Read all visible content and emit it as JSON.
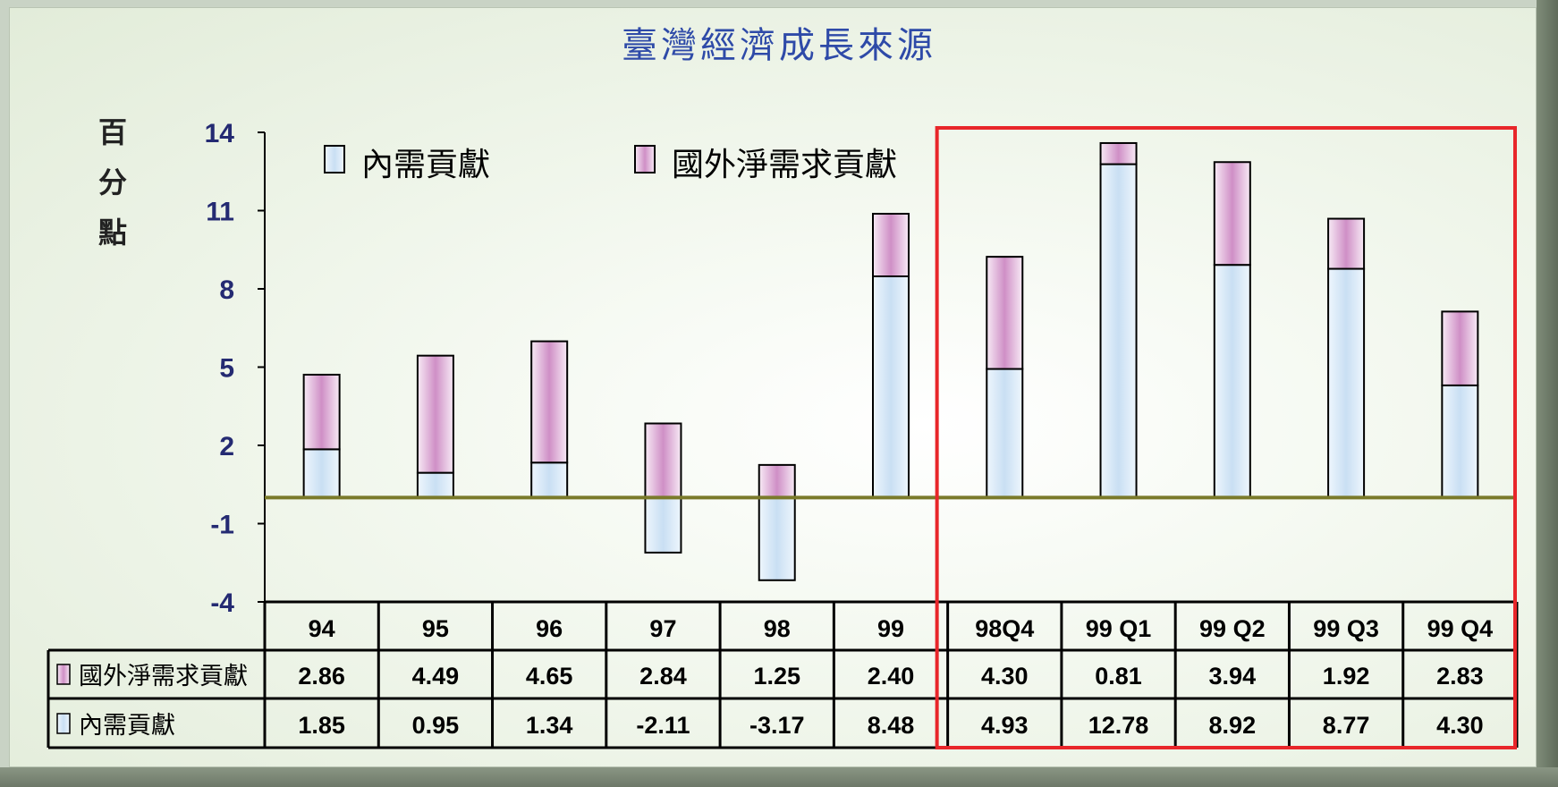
{
  "title": "臺灣經濟成長來源",
  "y_unit_label": "百分點",
  "colors": {
    "domestic_fill": "#d4e6f7",
    "foreign_fill": "#dbb0d6",
    "zero_line": "#7a7a2a",
    "highlight_box": "#e8262a"
  },
  "legend": {
    "domestic": "內需貢獻",
    "foreign": "國外淨需求貢獻"
  },
  "chart_data": {
    "type": "bar",
    "stacked": true,
    "categories": [
      "94",
      "95",
      "96",
      "97",
      "98",
      "99",
      "98Q4",
      "99 Q1",
      "99 Q2",
      "99 Q3",
      "99 Q4"
    ],
    "series": [
      {
        "name": "內需貢獻",
        "values": [
          1.85,
          0.95,
          1.34,
          -2.11,
          -3.17,
          8.48,
          4.93,
          12.78,
          8.92,
          8.77,
          4.3
        ]
      },
      {
        "name": "國外淨需求貢獻",
        "values": [
          2.86,
          4.49,
          4.65,
          2.84,
          1.25,
          2.4,
          4.3,
          0.81,
          3.94,
          1.92,
          2.83
        ]
      }
    ],
    "yticks": [
      "14",
      "11",
      "8",
      "5",
      "2",
      "-1",
      "-4"
    ],
    "ylim": [
      -4,
      14
    ],
    "highlighted_categories": [
      "98Q4",
      "99 Q1",
      "99 Q2",
      "99 Q3",
      "99 Q4"
    ]
  },
  "table": {
    "rows": [
      {
        "label": "國外淨需求貢獻",
        "values": [
          "2.86",
          "4.49",
          "4.65",
          "2.84",
          "1.25",
          "2.40",
          "4.30",
          "0.81",
          "3.94",
          "1.92",
          "2.83"
        ]
      },
      {
        "label": "內需貢獻",
        "values": [
          "1.85",
          "0.95",
          "1.34",
          "-2.11",
          "-3.17",
          "8.48",
          "4.93",
          "12.78",
          "8.92",
          "8.77",
          "4.30"
        ]
      }
    ]
  }
}
